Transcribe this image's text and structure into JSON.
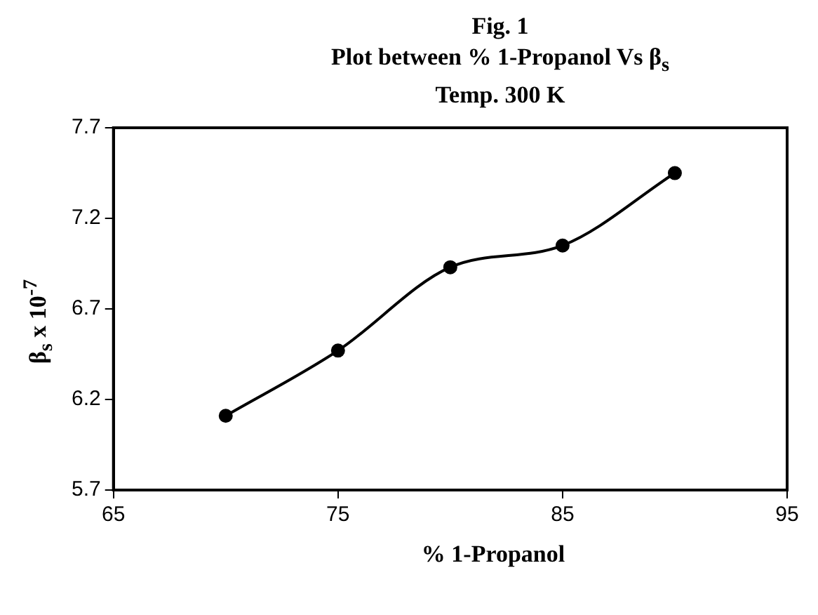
{
  "chart_data": {
    "type": "line",
    "title": "Fig. 1",
    "subtitle": "Plot between % 1-Propanol Vs β$_{s}$",
    "annotations": [
      "Temp. 300 K"
    ],
    "xlabel": "% 1-Propanol",
    "ylabel": "β$_{s}$ x 10$^{-7}$",
    "x": [
      70,
      75,
      80,
      85,
      90
    ],
    "series": [
      {
        "color": "#000000",
        "values": [
          6.11,
          6.47,
          6.93,
          7.05,
          7.45
        ]
      }
    ],
    "xlim": [
      65,
      95
    ],
    "xticks": [
      65,
      75,
      85,
      95
    ],
    "ylim": [
      5.7,
      7.7
    ],
    "yticks": [
      5.7,
      6.2,
      6.7,
      7.2,
      7.7
    ],
    "grid": false,
    "legend": false,
    "marker": "circle",
    "line_style": "solid"
  }
}
